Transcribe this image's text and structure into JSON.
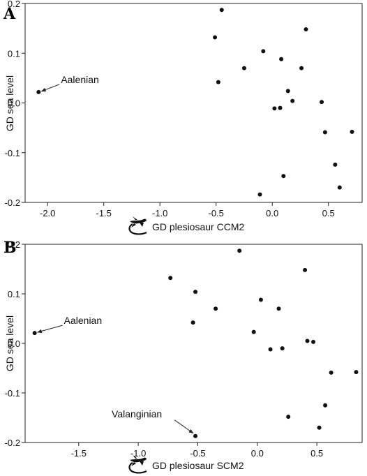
{
  "chart_data": [
    {
      "panel": "A",
      "type": "scatter",
      "xlabel": "GD plesiosaur CCM2",
      "ylabel": "GD sea level",
      "xlim": [
        -2.2,
        0.8
      ],
      "ylim": [
        -0.2,
        0.2
      ],
      "xticks": [
        -2.0,
        -1.5,
        -1.0,
        -0.5,
        0.0,
        0.5
      ],
      "xtick_labels": [
        "-2.0",
        "-1.5",
        "-1.0",
        "-0.5",
        "0.0",
        "0.5"
      ],
      "yticks": [
        0.2,
        0.1,
        0.0,
        -0.1,
        -0.2
      ],
      "ytick_labels": [
        "0.2",
        "0.1",
        "0.0",
        "-0.1",
        "-0.2"
      ],
      "grid": false,
      "legend": "none",
      "icon": "plesiosaur-icon",
      "points": [
        {
          "x": -2.08,
          "y": 0.022
        },
        {
          "x": -0.45,
          "y": 0.187
        },
        {
          "x": -0.51,
          "y": 0.132
        },
        {
          "x": -0.48,
          "y": 0.042
        },
        {
          "x": -0.25,
          "y": 0.07
        },
        {
          "x": -0.08,
          "y": 0.104
        },
        {
          "x": 0.08,
          "y": 0.088
        },
        {
          "x": 0.3,
          "y": 0.148
        },
        {
          "x": 0.26,
          "y": 0.07
        },
        {
          "x": 0.14,
          "y": 0.024
        },
        {
          "x": 0.18,
          "y": 0.004
        },
        {
          "x": 0.02,
          "y": -0.011
        },
        {
          "x": 0.07,
          "y": -0.01
        },
        {
          "x": 0.44,
          "y": 0.002
        },
        {
          "x": 0.47,
          "y": -0.059
        },
        {
          "x": 0.71,
          "y": -0.058
        },
        {
          "x": 0.56,
          "y": -0.124
        },
        {
          "x": 0.6,
          "y": -0.17
        },
        {
          "x": 0.1,
          "y": -0.147
        },
        {
          "x": -0.11,
          "y": -0.184
        }
      ],
      "annotations": [
        {
          "text": "Aalenian",
          "x": -2.08,
          "y": 0.022
        }
      ]
    },
    {
      "panel": "B",
      "type": "scatter",
      "xlabel": "GD plesiosaur SCM2",
      "ylabel": "GD sea level",
      "xlim": [
        -1.95,
        0.88
      ],
      "ylim": [
        -0.2,
        0.2
      ],
      "xticks": [
        -1.5,
        -1.0,
        -0.5,
        0.0,
        0.5
      ],
      "xtick_labels": [
        "-1.5",
        "-1.0",
        "-0.5",
        "0.0",
        "0.5"
      ],
      "yticks": [
        0.2,
        0.1,
        0.0,
        -0.1,
        -0.2
      ],
      "ytick_labels": [
        "0.2",
        "0.1",
        "0.0",
        "-0.1",
        "-0.2"
      ],
      "grid": false,
      "legend": "none",
      "icon": "plesiosaur-icon",
      "points": [
        {
          "x": -1.87,
          "y": 0.021
        },
        {
          "x": -0.73,
          "y": 0.132
        },
        {
          "x": -0.52,
          "y": 0.104
        },
        {
          "x": -0.54,
          "y": 0.042
        },
        {
          "x": -0.35,
          "y": 0.07
        },
        {
          "x": -0.15,
          "y": 0.187
        },
        {
          "x": 0.03,
          "y": 0.088
        },
        {
          "x": 0.18,
          "y": 0.07
        },
        {
          "x": -0.03,
          "y": 0.023
        },
        {
          "x": 0.4,
          "y": 0.148
        },
        {
          "x": 0.42,
          "y": 0.005
        },
        {
          "x": 0.47,
          "y": 0.003
        },
        {
          "x": 0.11,
          "y": -0.012
        },
        {
          "x": 0.21,
          "y": -0.01
        },
        {
          "x": 0.62,
          "y": -0.059
        },
        {
          "x": 0.83,
          "y": -0.058
        },
        {
          "x": 0.57,
          "y": -0.125
        },
        {
          "x": 0.52,
          "y": -0.17
        },
        {
          "x": 0.26,
          "y": -0.148
        },
        {
          "x": -0.52,
          "y": -0.187
        }
      ],
      "annotations": [
        {
          "text": "Aalenian",
          "x": -1.87,
          "y": 0.021
        },
        {
          "text": "Valanginian",
          "x": -0.52,
          "y": -0.187
        }
      ]
    }
  ]
}
